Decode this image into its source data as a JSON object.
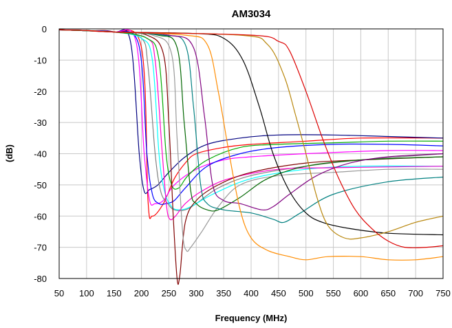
{
  "chart_data": {
    "type": "line",
    "title": "AM3034",
    "xlabel": "Frequency (MHz)",
    "ylabel": "(dB)",
    "xlim": [
      50,
      750
    ],
    "ylim": [
      -80,
      0
    ],
    "xticks": [
      "50",
      "100",
      "150",
      "200",
      "250",
      "300",
      "350",
      "400",
      "450",
      "500",
      "550",
      "600",
      "650",
      "700",
      "750"
    ],
    "yticks": [
      "0",
      "-10",
      "-20",
      "-30",
      "-40",
      "-50",
      "-60",
      "-70",
      "-80"
    ],
    "grid": true,
    "legend": "none",
    "series": [
      {
        "color": "#ff0000",
        "points": [
          [
            50,
            -0.3
          ],
          [
            100,
            -0.6
          ],
          [
            150,
            -1
          ],
          [
            200,
            -6
          ],
          [
            212,
            -55
          ],
          [
            220,
            -60
          ],
          [
            240,
            -56
          ],
          [
            260,
            -48
          ],
          [
            280,
            -43
          ],
          [
            300,
            -40
          ],
          [
            350,
            -38
          ],
          [
            400,
            -37
          ],
          [
            500,
            -36
          ],
          [
            600,
            -35
          ],
          [
            750,
            -35
          ]
        ]
      },
      {
        "color": "#000080",
        "points": [
          [
            50,
            -0.3
          ],
          [
            100,
            -0.6
          ],
          [
            150,
            -1
          ],
          [
            180,
            -4
          ],
          [
            196,
            -40
          ],
          [
            205,
            -52
          ],
          [
            215,
            -51.5
          ],
          [
            230,
            -50
          ],
          [
            250,
            -46
          ],
          [
            280,
            -41
          ],
          [
            320,
            -37
          ],
          [
            380,
            -35
          ],
          [
            450,
            -34
          ],
          [
            550,
            -34
          ],
          [
            650,
            -34.5
          ],
          [
            750,
            -35
          ]
        ]
      },
      {
        "color": "#ff00ff",
        "points": [
          [
            50,
            -0.3
          ],
          [
            100,
            -0.6
          ],
          [
            150,
            -1
          ],
          [
            190,
            -4
          ],
          [
            205,
            -40
          ],
          [
            215,
            -55
          ],
          [
            225,
            -56
          ],
          [
            240,
            -55
          ],
          [
            260,
            -50
          ],
          [
            300,
            -45
          ],
          [
            350,
            -42
          ],
          [
            400,
            -41
          ],
          [
            500,
            -40
          ],
          [
            650,
            -39
          ],
          [
            750,
            -39
          ]
        ]
      },
      {
        "color": "#0000ff",
        "points": [
          [
            50,
            -0.3
          ],
          [
            100,
            -0.6
          ],
          [
            150,
            -1
          ],
          [
            195,
            -5
          ],
          [
            210,
            -40
          ],
          [
            220,
            -53
          ],
          [
            232,
            -56
          ],
          [
            245,
            -56
          ],
          [
            260,
            -55
          ],
          [
            280,
            -51
          ],
          [
            320,
            -44
          ],
          [
            380,
            -40
          ],
          [
            450,
            -38
          ],
          [
            550,
            -37
          ],
          [
            650,
            -37
          ],
          [
            750,
            -37.5
          ]
        ]
      },
      {
        "color": "#808080",
        "points": [
          [
            50,
            -0.3
          ],
          [
            100,
            -0.6
          ],
          [
            150,
            -1
          ],
          [
            200,
            -3
          ],
          [
            212,
            -12
          ],
          [
            225,
            -40
          ],
          [
            235,
            -52
          ],
          [
            248,
            -56
          ],
          [
            260,
            -58
          ],
          [
            280,
            -58
          ],
          [
            300,
            -56
          ],
          [
            340,
            -51
          ],
          [
            400,
            -47
          ],
          [
            500,
            -44
          ],
          [
            600,
            -42
          ],
          [
            750,
            -40
          ]
        ]
      },
      {
        "color": "#00ffff",
        "points": [
          [
            50,
            -0.3
          ],
          [
            100,
            -0.6
          ],
          [
            150,
            -1
          ],
          [
            200,
            -3
          ],
          [
            220,
            -10
          ],
          [
            232,
            -40
          ],
          [
            242,
            -52
          ],
          [
            255,
            -57
          ],
          [
            270,
            -58
          ],
          [
            290,
            -57
          ],
          [
            330,
            -53
          ],
          [
            400,
            -48
          ],
          [
            500,
            -45
          ],
          [
            600,
            -44
          ],
          [
            750,
            -44
          ]
        ]
      },
      {
        "color": "#ff00cc",
        "points": [
          [
            50,
            -0.3
          ],
          [
            100,
            -0.6
          ],
          [
            150,
            -1
          ],
          [
            210,
            -3
          ],
          [
            225,
            -10
          ],
          [
            238,
            -40
          ],
          [
            246,
            -57
          ],
          [
            252,
            -61
          ],
          [
            262,
            -60
          ],
          [
            280,
            -56
          ],
          [
            310,
            -52
          ],
          [
            360,
            -48
          ],
          [
            450,
            -45
          ],
          [
            550,
            -44.5
          ],
          [
            750,
            -44
          ]
        ]
      },
      {
        "color": "#00aa00",
        "points": [
          [
            50,
            -0.3
          ],
          [
            100,
            -0.6
          ],
          [
            150,
            -1
          ],
          [
            210,
            -3
          ],
          [
            232,
            -10
          ],
          [
            245,
            -40
          ],
          [
            255,
            -50
          ],
          [
            268,
            -51
          ],
          [
            285,
            -47
          ],
          [
            320,
            -42
          ],
          [
            380,
            -38
          ],
          [
            450,
            -37
          ],
          [
            550,
            -36.5
          ],
          [
            650,
            -36
          ],
          [
            750,
            -36
          ]
        ]
      },
      {
        "color": "#800000",
        "points": [
          [
            50,
            -0.3
          ],
          [
            100,
            -0.6
          ],
          [
            150,
            -1
          ],
          [
            210,
            -2
          ],
          [
            240,
            -8
          ],
          [
            250,
            -30
          ],
          [
            258,
            -60
          ],
          [
            265,
            -80
          ],
          [
            270,
            -79
          ],
          [
            280,
            -62
          ],
          [
            300,
            -55
          ],
          [
            340,
            -50
          ],
          [
            400,
            -46
          ],
          [
            500,
            -43
          ],
          [
            600,
            -42
          ],
          [
            750,
            -41
          ]
        ]
      },
      {
        "color": "#999999",
        "points": [
          [
            50,
            -0.3
          ],
          [
            100,
            -0.6
          ],
          [
            150,
            -1
          ],
          [
            220,
            -2
          ],
          [
            255,
            -8
          ],
          [
            265,
            -35
          ],
          [
            275,
            -65
          ],
          [
            282,
            -71
          ],
          [
            290,
            -70
          ],
          [
            310,
            -65
          ],
          [
            340,
            -57
          ],
          [
            380,
            -50
          ],
          [
            450,
            -47
          ],
          [
            550,
            -46
          ],
          [
            650,
            -45
          ],
          [
            750,
            -45
          ]
        ]
      },
      {
        "color": "#006600",
        "points": [
          [
            50,
            -0.3
          ],
          [
            100,
            -0.6
          ],
          [
            150,
            -1
          ],
          [
            230,
            -2
          ],
          [
            265,
            -6
          ],
          [
            278,
            -30
          ],
          [
            290,
            -52
          ],
          [
            300,
            -56
          ],
          [
            320,
            -58
          ],
          [
            340,
            -58
          ],
          [
            380,
            -54
          ],
          [
            430,
            -48
          ],
          [
            500,
            -44
          ],
          [
            600,
            -42
          ],
          [
            750,
            -41
          ]
        ]
      },
      {
        "color": "#008080",
        "points": [
          [
            50,
            -0.3
          ],
          [
            100,
            -0.5
          ],
          [
            150,
            -1
          ],
          [
            240,
            -2
          ],
          [
            280,
            -5
          ],
          [
            295,
            -25
          ],
          [
            308,
            -50
          ],
          [
            320,
            -56
          ],
          [
            350,
            -58
          ],
          [
            400,
            -59
          ],
          [
            440,
            -61
          ],
          [
            460,
            -62
          ],
          [
            490,
            -59
          ],
          [
            550,
            -53
          ],
          [
            650,
            -49
          ],
          [
            750,
            -47.5
          ]
        ]
      },
      {
        "color": "#800080",
        "points": [
          [
            50,
            -0.3
          ],
          [
            100,
            -0.5
          ],
          [
            150,
            -1
          ],
          [
            250,
            -2
          ],
          [
            295,
            -6
          ],
          [
            315,
            -28
          ],
          [
            330,
            -50
          ],
          [
            350,
            -55
          ],
          [
            380,
            -56
          ],
          [
            420,
            -58
          ],
          [
            440,
            -57
          ],
          [
            470,
            -53
          ],
          [
            520,
            -47
          ],
          [
            580,
            -43
          ],
          [
            650,
            -41
          ],
          [
            750,
            -40
          ]
        ]
      },
      {
        "color": "#ff8c00",
        "points": [
          [
            50,
            -0.3
          ],
          [
            100,
            -0.5
          ],
          [
            150,
            -1
          ],
          [
            280,
            -2
          ],
          [
            320,
            -5
          ],
          [
            340,
            -20
          ],
          [
            360,
            -40
          ],
          [
            380,
            -58
          ],
          [
            400,
            -67
          ],
          [
            430,
            -71
          ],
          [
            470,
            -73
          ],
          [
            500,
            -74
          ],
          [
            540,
            -73
          ],
          [
            600,
            -73
          ],
          [
            650,
            -74
          ],
          [
            700,
            -74
          ],
          [
            750,
            -73
          ]
        ]
      },
      {
        "color": "#000000",
        "points": [
          [
            50,
            -0.3
          ],
          [
            100,
            -0.5
          ],
          [
            150,
            -1
          ],
          [
            300,
            -1.5
          ],
          [
            350,
            -3
          ],
          [
            385,
            -10
          ],
          [
            415,
            -25
          ],
          [
            440,
            -40
          ],
          [
            470,
            -52
          ],
          [
            500,
            -59
          ],
          [
            530,
            -62
          ],
          [
            580,
            -64
          ],
          [
            650,
            -65.5
          ],
          [
            750,
            -66
          ]
        ]
      },
      {
        "color": "#b8860b",
        "points": [
          [
            50,
            -0.3
          ],
          [
            100,
            -0.5
          ],
          [
            150,
            -1
          ],
          [
            380,
            -2
          ],
          [
            430,
            -5
          ],
          [
            460,
            -15
          ],
          [
            480,
            -27
          ],
          [
            500,
            -40
          ],
          [
            520,
            -54
          ],
          [
            540,
            -63
          ],
          [
            570,
            -67
          ],
          [
            600,
            -67
          ],
          [
            650,
            -65
          ],
          [
            700,
            -62
          ],
          [
            750,
            -60
          ]
        ]
      },
      {
        "color": "#dd0000",
        "points": [
          [
            50,
            -0.3
          ],
          [
            100,
            -0.5
          ],
          [
            150,
            -1
          ],
          [
            400,
            -2
          ],
          [
            450,
            -4
          ],
          [
            470,
            -7
          ],
          [
            500,
            -20
          ],
          [
            530,
            -35
          ],
          [
            560,
            -48
          ],
          [
            590,
            -58
          ],
          [
            620,
            -64
          ],
          [
            650,
            -68
          ],
          [
            680,
            -70
          ],
          [
            720,
            -70
          ],
          [
            750,
            -69.5
          ]
        ]
      }
    ]
  }
}
